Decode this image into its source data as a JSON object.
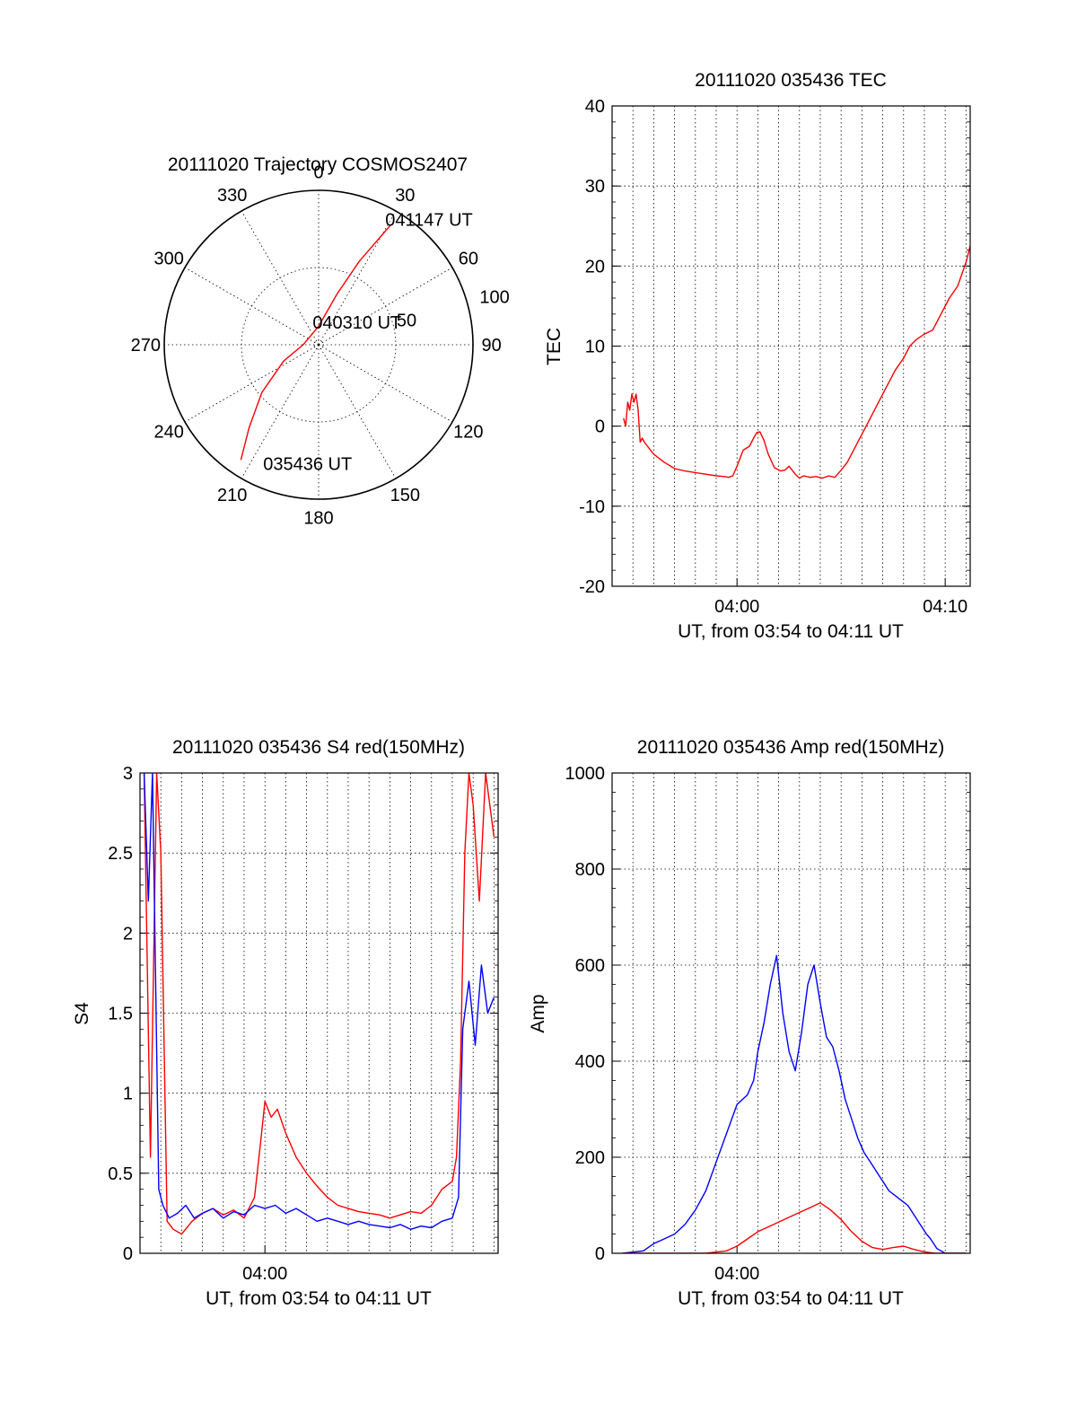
{
  "chart_data": [
    {
      "id": "trajectory",
      "type": "polar",
      "title": "20111020 Trajectory COSMOS2407",
      "angle_labels": [
        {
          "deg": 0,
          "text": "0"
        },
        {
          "deg": 30,
          "text": "30"
        },
        {
          "deg": 60,
          "text": "60"
        },
        {
          "deg": 90,
          "text": "90"
        },
        {
          "deg": 120,
          "text": "120"
        },
        {
          "deg": 150,
          "text": "150"
        },
        {
          "deg": 180,
          "text": "180"
        },
        {
          "deg": 210,
          "text": "210"
        },
        {
          "deg": 240,
          "text": "240"
        },
        {
          "deg": 270,
          "text": "270"
        },
        {
          "deg": 300,
          "text": "300"
        },
        {
          "deg": 330,
          "text": "330"
        }
      ],
      "radius_max": 100,
      "radius_labels": [
        {
          "value": 50,
          "text": "50"
        },
        {
          "value": 100,
          "text": "100"
        }
      ],
      "track_color": "#ff0000",
      "track_points": [
        {
          "az": 214,
          "r": 90
        },
        {
          "az": 220,
          "r": 70
        },
        {
          "az": 230,
          "r": 48
        },
        {
          "az": 245,
          "r": 25
        },
        {
          "az": 270,
          "r": 10
        },
        {
          "az": 0,
          "r": 12
        },
        {
          "az": 20,
          "r": 35
        },
        {
          "az": 26,
          "r": 60
        },
        {
          "az": 31,
          "r": 90
        }
      ],
      "annotations": [
        {
          "text": "041147 UT",
          "az": 28,
          "r": 92
        },
        {
          "text": "040310 UT",
          "az": 345,
          "r": 15
        },
        {
          "text": "035436 UT",
          "az": 205,
          "r": 85
        }
      ]
    },
    {
      "id": "tec",
      "type": "line",
      "title": "20111020 035436 TEC",
      "xlabel": "UT, from 03:54 to 04:11 UT",
      "ylabel": "TEC",
      "xlim": [
        0,
        17.2
      ],
      "ylim": [
        -20,
        40
      ],
      "yticks": [
        -20,
        -10,
        0,
        10,
        20,
        30,
        40
      ],
      "xticks": [
        {
          "value": 6,
          "text": "04:00"
        },
        {
          "value": 16,
          "text": "04:10"
        }
      ],
      "xgrid_minutes": [
        1,
        2,
        3,
        4,
        5,
        6,
        7,
        8,
        9,
        10,
        11,
        12,
        13,
        14,
        15,
        16,
        17
      ],
      "series": [
        {
          "color": "#ff0000",
          "x": [
            0.55,
            0.65,
            0.75,
            0.85,
            0.95,
            1.05,
            1.15,
            1.25,
            1.35,
            1.45,
            1.55,
            1.7,
            2.0,
            2.5,
            3.0,
            3.5,
            4.0,
            4.5,
            5.0,
            5.4,
            5.6,
            5.8,
            6.0,
            6.3,
            6.6,
            6.8,
            6.95,
            7.1,
            7.3,
            7.5,
            7.8,
            8.1,
            8.3,
            8.5,
            8.8,
            9.0,
            9.2,
            9.5,
            9.8,
            10.1,
            10.4,
            10.7,
            11.0,
            11.3,
            11.6,
            12.0,
            12.4,
            12.8,
            13.2,
            13.6,
            14.0,
            14.3,
            14.6,
            15.0,
            15.4,
            15.8,
            16.2,
            16.6,
            17.0,
            17.2
          ],
          "y": [
            1,
            0,
            3,
            2,
            4,
            3,
            4,
            2,
            -2,
            -1.5,
            -2,
            -2.5,
            -3.5,
            -4.5,
            -5.3,
            -5.6,
            -5.8,
            -6.0,
            -6.2,
            -6.3,
            -6.4,
            -6.2,
            -5.0,
            -3.0,
            -2.5,
            -1.5,
            -0.8,
            -0.7,
            -1.8,
            -3.5,
            -5.2,
            -5.6,
            -5.5,
            -5.0,
            -6.0,
            -6.5,
            -6.2,
            -6.4,
            -6.3,
            -6.5,
            -6.2,
            -6.4,
            -5.5,
            -4.5,
            -3.0,
            -1.0,
            1.0,
            3.0,
            5.0,
            7.0,
            8.5,
            10.0,
            10.8,
            11.5,
            12.0,
            14.0,
            16.0,
            17.5,
            20.5,
            22.5
          ]
        }
      ]
    },
    {
      "id": "s4",
      "type": "line",
      "title": "20111020 035436 S4 red(150MHz)",
      "xlabel": "UT, from 03:54 to 04:11 UT",
      "ylabel": "S4",
      "xlim": [
        0,
        17.2
      ],
      "ylim": [
        0,
        3
      ],
      "yticks": [
        {
          "value": 0,
          "text": "0"
        },
        {
          "value": 0.5,
          "text": "0.5"
        },
        {
          "value": 1,
          "text": "1"
        },
        {
          "value": 1.5,
          "text": "1.5"
        },
        {
          "value": 2,
          "text": "2"
        },
        {
          "value": 2.5,
          "text": "2.5"
        },
        {
          "value": 3,
          "text": "3"
        }
      ],
      "xticks": [
        {
          "value": 6,
          "text": "04:00"
        }
      ],
      "xgrid_minutes": [
        1,
        2,
        3,
        4,
        5,
        6,
        7,
        8,
        9,
        10,
        11,
        12,
        13,
        14,
        15,
        16,
        17
      ],
      "series": [
        {
          "color": "#ff0000",
          "x": [
            0.2,
            0.5,
            0.8,
            1.0,
            1.3,
            1.6,
            2.0,
            2.5,
            3.0,
            3.5,
            4.0,
            4.5,
            5.0,
            5.5,
            5.8,
            6.0,
            6.3,
            6.6,
            7.0,
            7.5,
            8.0,
            8.5,
            9.0,
            9.5,
            10.0,
            10.5,
            11.0,
            11.5,
            12.0,
            12.5,
            13.0,
            13.5,
            14.0,
            14.5,
            15.0,
            15.2,
            15.4,
            15.6,
            15.8,
            16.0,
            16.3,
            16.6,
            17.0
          ],
          "y": [
            3,
            0.6,
            3,
            2.5,
            0.2,
            0.15,
            0.12,
            0.2,
            0.25,
            0.28,
            0.24,
            0.27,
            0.22,
            0.35,
            0.7,
            0.95,
            0.85,
            0.9,
            0.75,
            0.6,
            0.5,
            0.42,
            0.35,
            0.3,
            0.28,
            0.26,
            0.25,
            0.24,
            0.22,
            0.24,
            0.26,
            0.25,
            0.3,
            0.4,
            0.45,
            0.6,
            1.2,
            2.5,
            3,
            2.8,
            2.2,
            3,
            2.6
          ]
        },
        {
          "color": "#0000ff",
          "x": [
            0.2,
            0.4,
            0.6,
            0.9,
            1.1,
            1.4,
            1.8,
            2.2,
            2.6,
            3.0,
            3.5,
            4.0,
            4.5,
            5.0,
            5.5,
            6.0,
            6.5,
            7.0,
            7.5,
            8.0,
            8.5,
            9.0,
            9.5,
            10.0,
            10.5,
            11.0,
            11.5,
            12.0,
            12.5,
            13.0,
            13.5,
            14.0,
            14.5,
            15.0,
            15.3,
            15.5,
            15.8,
            16.1,
            16.4,
            16.7,
            17.0
          ],
          "y": [
            3,
            2.2,
            3,
            0.4,
            0.3,
            0.22,
            0.25,
            0.3,
            0.22,
            0.25,
            0.28,
            0.22,
            0.26,
            0.24,
            0.3,
            0.28,
            0.3,
            0.25,
            0.28,
            0.24,
            0.2,
            0.22,
            0.2,
            0.18,
            0.2,
            0.18,
            0.17,
            0.16,
            0.18,
            0.15,
            0.17,
            0.16,
            0.2,
            0.22,
            0.35,
            1.4,
            1.7,
            1.3,
            1.8,
            1.5,
            1.6
          ]
        }
      ]
    },
    {
      "id": "amp",
      "type": "line",
      "title": "20111020 035436 Amp red(150MHz)",
      "xlabel": "UT, from 03:54 to 04:11 UT",
      "ylabel": "Amp",
      "xlim": [
        0,
        17.2
      ],
      "ylim": [
        0,
        1000
      ],
      "yticks": [
        0,
        200,
        400,
        600,
        800,
        1000
      ],
      "xticks": [
        {
          "value": 6,
          "text": "04:00"
        }
      ],
      "xgrid_minutes": [
        1,
        2,
        3,
        4,
        5,
        6,
        7,
        8,
        9,
        10,
        11,
        12,
        13,
        14,
        15,
        16,
        17
      ],
      "series": [
        {
          "color": "#0000ff",
          "x": [
            0.5,
            1.5,
            2.0,
            2.5,
            3.0,
            3.5,
            4.0,
            4.5,
            5.0,
            5.5,
            6.0,
            6.5,
            6.8,
            7.0,
            7.3,
            7.6,
            7.9,
            8.2,
            8.5,
            8.8,
            9.1,
            9.4,
            9.7,
            10.0,
            10.3,
            10.6,
            10.9,
            11.2,
            11.5,
            11.8,
            12.1,
            12.4,
            12.7,
            13.0,
            13.3,
            13.6,
            13.9,
            14.2,
            14.5,
            14.8,
            15.1,
            15.3,
            15.6,
            16.0,
            17.0
          ],
          "y": [
            0,
            5,
            20,
            30,
            40,
            60,
            90,
            130,
            190,
            250,
            310,
            330,
            360,
            420,
            480,
            560,
            620,
            500,
            420,
            380,
            460,
            560,
            600,
            520,
            450,
            430,
            380,
            320,
            280,
            240,
            210,
            190,
            170,
            150,
            130,
            120,
            110,
            100,
            80,
            60,
            40,
            30,
            10,
            0,
            0
          ]
        },
        {
          "color": "#ff0000",
          "x": [
            0.5,
            4.5,
            5.5,
            6.0,
            6.5,
            7.0,
            7.5,
            8.0,
            8.5,
            9.0,
            9.5,
            10.0,
            10.5,
            11.0,
            11.5,
            12.0,
            12.5,
            13.0,
            13.5,
            14.0,
            14.5,
            15.0,
            15.5,
            17.0
          ],
          "y": [
            0,
            0,
            5,
            15,
            30,
            45,
            55,
            65,
            75,
            85,
            95,
            105,
            90,
            70,
            45,
            25,
            12,
            8,
            12,
            15,
            8,
            3,
            0,
            0
          ]
        }
      ]
    }
  ]
}
